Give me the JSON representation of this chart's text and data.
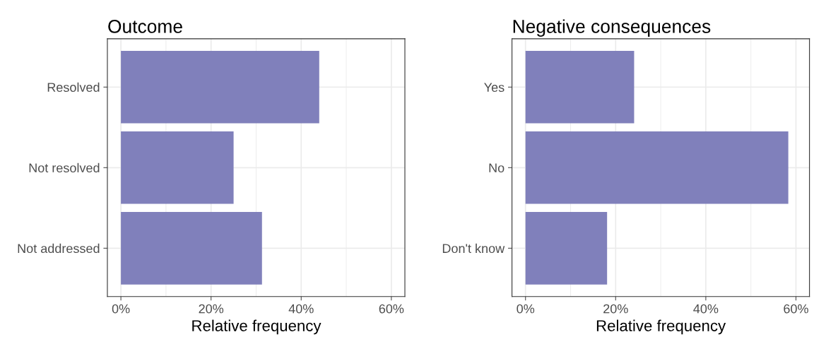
{
  "chart_data": [
    {
      "type": "bar",
      "orientation": "horizontal",
      "title": "Outcome",
      "xlabel": "Relative frequency",
      "categories": [
        "Resolved",
        "Not resolved",
        "Not addressed"
      ],
      "values": [
        44,
        25,
        31.3
      ],
      "color": "#8080bb",
      "xlim": [
        -3,
        63
      ],
      "xticks": [
        {
          "value": 0,
          "label": "0%"
        },
        {
          "value": 20,
          "label": "20%"
        },
        {
          "value": 40,
          "label": "40%"
        },
        {
          "value": 60,
          "label": "60%"
        }
      ],
      "grid": true
    },
    {
      "type": "bar",
      "orientation": "horizontal",
      "title": "Negative consequences",
      "xlabel": "Relative frequency",
      "categories": [
        "Yes",
        "No",
        "Don't know"
      ],
      "values": [
        24.1,
        58.3,
        18.1
      ],
      "color": "#8080bb",
      "xlim": [
        -3,
        63
      ],
      "xticks": [
        {
          "value": 0,
          "label": "0%"
        },
        {
          "value": 20,
          "label": "20%"
        },
        {
          "value": 40,
          "label": "40%"
        },
        {
          "value": 60,
          "label": "60%"
        }
      ],
      "grid": true
    }
  ]
}
